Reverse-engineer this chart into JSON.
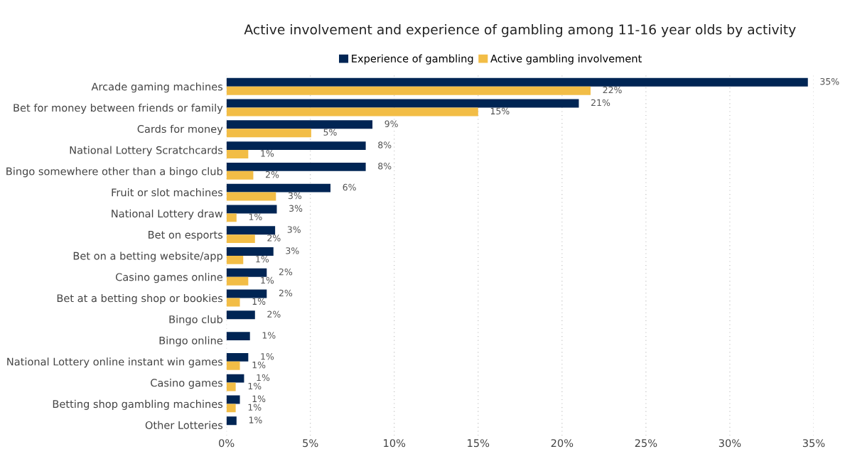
{
  "chart_data": {
    "type": "bar",
    "orientation": "horizontal",
    "title": "Active involvement and experience of gambling among 11-16 year olds by activity",
    "categories": [
      "Arcade gaming machines",
      "Bet for money between friends or family",
      "Cards for money",
      "National Lottery Scratchcards",
      "Bingo somewhere other than a bingo club",
      "Fruit or slot machines",
      "National Lottery draw",
      "Bet on esports",
      "Bet on a betting website/app",
      "Casino games online",
      "Bet at a betting shop or bookies",
      "Bingo club",
      "Bingo online",
      "National Lottery online instant win games",
      "Casino games",
      "Betting shop gambling machines",
      "Other Lotteries"
    ],
    "series": [
      {
        "name": "Experience of gambling",
        "color": "#002554",
        "values": [
          34.65,
          21.0,
          8.7,
          8.3,
          8.3,
          6.2,
          3.0,
          2.9,
          2.8,
          2.4,
          2.4,
          1.7,
          1.4,
          1.3,
          1.05,
          0.8,
          0.6
        ],
        "value_labels": [
          "35%",
          "21%",
          "9%",
          "8%",
          "8%",
          "6%",
          "3%",
          "3%",
          "3%",
          "2%",
          "2%",
          "2%",
          "1%",
          "1%",
          "1%",
          "1%",
          "1%"
        ]
      },
      {
        "name": "Active gambling involvement",
        "color": "#f2bd46",
        "values": [
          21.7,
          15.0,
          5.05,
          1.3,
          1.6,
          2.95,
          0.6,
          1.7,
          1.0,
          1.3,
          0.8,
          null,
          null,
          0.8,
          0.55,
          0.55,
          null
        ],
        "value_labels": [
          "22%",
          "15%",
          "5%",
          "1%",
          "2%",
          "3%",
          "1%",
          "2%",
          "1%",
          "1%",
          "1%",
          null,
          null,
          "1%",
          "1%",
          "1%",
          null
        ]
      }
    ],
    "xlim": [
      0,
      35
    ],
    "xticks": [
      {
        "value": 0,
        "label": "0%"
      },
      {
        "value": 5,
        "label": "5%"
      },
      {
        "value": 10,
        "label": "10%"
      },
      {
        "value": 15,
        "label": "15%"
      },
      {
        "value": 20,
        "label": "20%"
      },
      {
        "value": 25,
        "label": "25%"
      },
      {
        "value": 30,
        "label": "30%"
      },
      {
        "value": 35,
        "label": "35%"
      }
    ],
    "grid": "x",
    "legend": "top"
  }
}
